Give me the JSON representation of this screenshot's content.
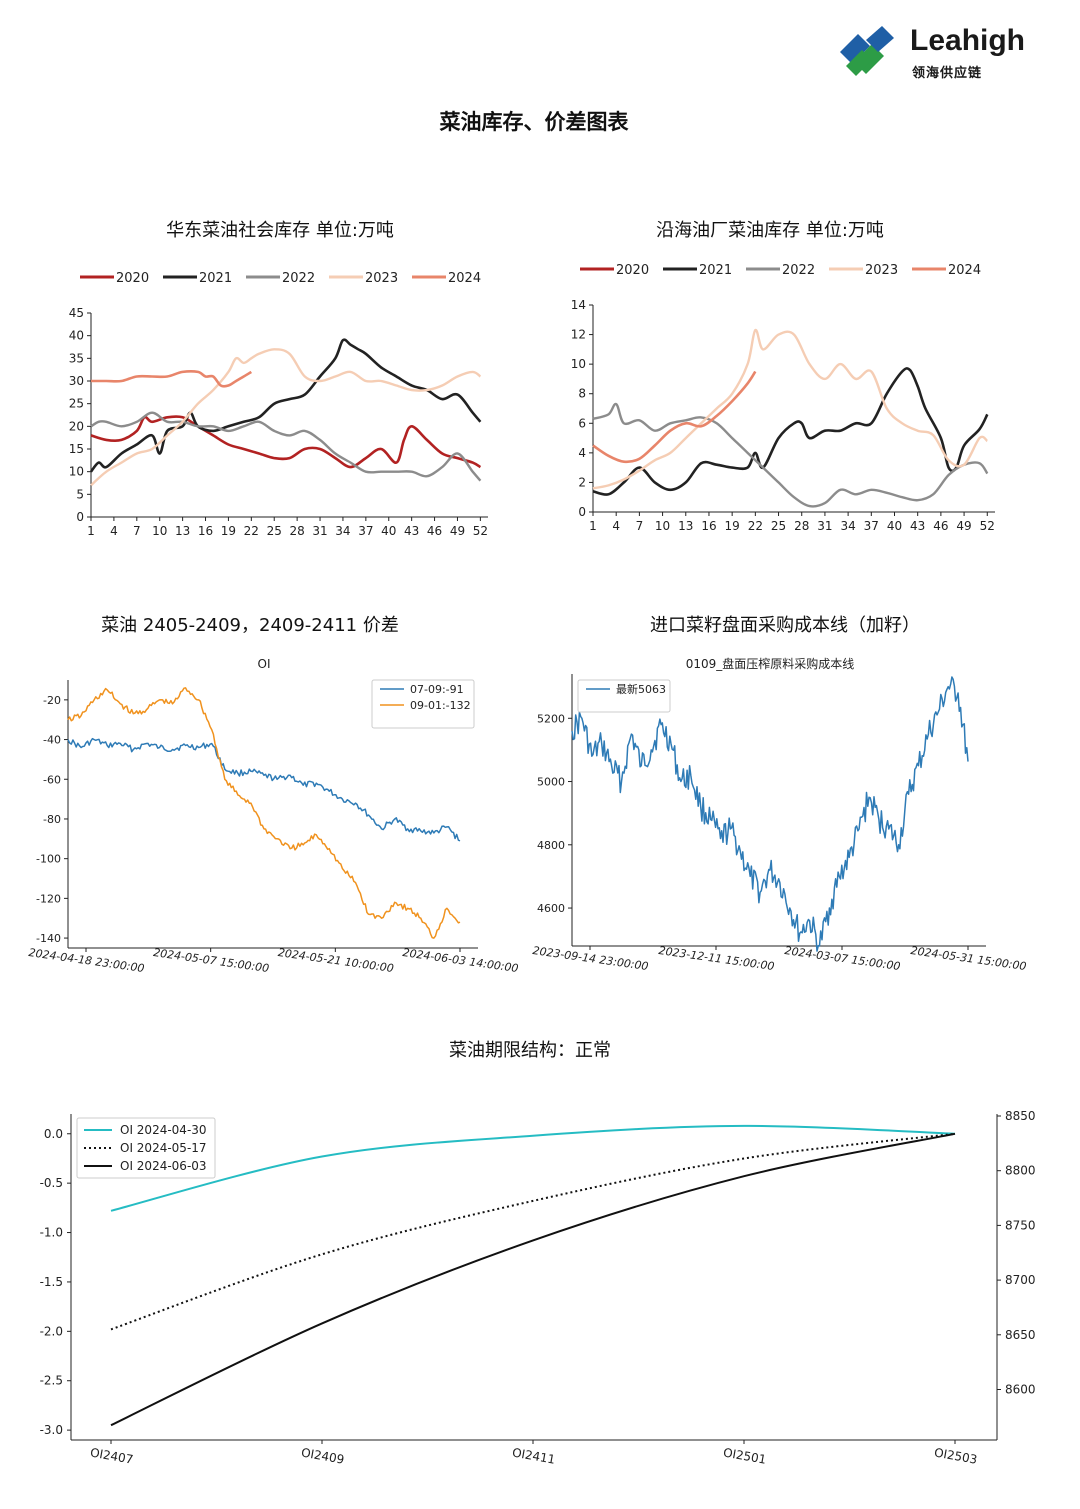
{
  "header": {
    "logo_name": "Leahigh",
    "logo_sub": "领海供应链",
    "page_title": "菜油库存、价差图表"
  },
  "colors": {
    "y2020": "#b22222",
    "y2021": "#222222",
    "y2022": "#8c8c8c",
    "y2023": "#f5cdb4",
    "y2024": "#e8856a",
    "blue": "#2e7bb6",
    "orange": "#f0921e",
    "teal": "#25bcc3"
  },
  "chart_data": [
    {
      "id": "east_china_inventory",
      "type": "line",
      "title": "华东菜油社会库存  单位:万吨",
      "legend_placement": "top",
      "xticks": [
        "1",
        "4",
        "7",
        "10",
        "13",
        "16",
        "19",
        "22",
        "25",
        "28",
        "31",
        "34",
        "37",
        "40",
        "43",
        "46",
        "49",
        "52"
      ],
      "yticks": [
        "0",
        "5",
        "10",
        "15",
        "20",
        "25",
        "30",
        "35",
        "40",
        "45"
      ],
      "ylim": [
        0,
        45
      ],
      "xlim": [
        1,
        53
      ],
      "series": [
        {
          "name": "2020",
          "color": "#b22222",
          "x": [
            1,
            3,
            5,
            7,
            8,
            9,
            11,
            13,
            15,
            17,
            19,
            21,
            23,
            25,
            27,
            29,
            31,
            33,
            35,
            37,
            39,
            41,
            42,
            43,
            45,
            47,
            49,
            51,
            52
          ],
          "y": [
            18,
            17,
            17,
            19,
            22,
            21,
            22,
            22,
            20,
            18,
            16,
            15,
            14,
            13,
            13,
            15,
            15,
            13,
            11,
            13,
            15,
            12,
            17,
            20,
            17,
            14,
            13,
            12,
            11
          ]
        },
        {
          "name": "2021",
          "color": "#222222",
          "x": [
            1,
            2,
            3,
            5,
            7,
            9,
            10,
            11,
            13,
            14,
            15,
            17,
            19,
            21,
            23,
            25,
            27,
            29,
            31,
            33,
            34,
            35,
            36,
            37,
            39,
            41,
            43,
            45,
            47,
            49,
            51,
            52
          ],
          "y": [
            10,
            12,
            11,
            14,
            16,
            18,
            14,
            19,
            20,
            23,
            20,
            19,
            20,
            21,
            22,
            25,
            26,
            27,
            31,
            35,
            39,
            38,
            37,
            36,
            33,
            31,
            29,
            28,
            26,
            27,
            23,
            21
          ]
        },
        {
          "name": "2022",
          "color": "#8c8c8c",
          "x": [
            1,
            2,
            3,
            5,
            7,
            9,
            11,
            13,
            15,
            17,
            19,
            21,
            23,
            25,
            27,
            29,
            31,
            33,
            35,
            37,
            39,
            41,
            43,
            45,
            47,
            49,
            51,
            52
          ],
          "y": [
            20,
            21,
            21,
            20,
            21,
            23,
            21,
            21,
            20,
            20,
            19,
            20,
            21,
            19,
            18,
            19,
            17,
            14,
            12,
            10,
            10,
            10,
            10,
            9,
            11,
            14,
            10,
            8
          ]
        },
        {
          "name": "2023",
          "color": "#f5cdb4",
          "x": [
            1,
            3,
            5,
            7,
            9,
            11,
            13,
            15,
            17,
            19,
            20,
            21,
            22,
            23,
            25,
            27,
            29,
            31,
            33,
            35,
            37,
            39,
            41,
            43,
            45,
            47,
            49,
            51,
            52
          ],
          "y": [
            7,
            10,
            12,
            14,
            15,
            18,
            21,
            25,
            28,
            32,
            35,
            34,
            35,
            36,
            37,
            36,
            31,
            30,
            31,
            32,
            30,
            30,
            29,
            28,
            28,
            29,
            31,
            32,
            31
          ]
        },
        {
          "name": "2024",
          "color": "#e8856a",
          "x": [
            1,
            3,
            5,
            7,
            9,
            11,
            13,
            15,
            16,
            17,
            18,
            19,
            20,
            21,
            22
          ],
          "y": [
            30,
            30,
            30,
            31,
            31,
            31,
            32,
            32,
            31,
            31,
            29,
            29,
            30,
            31,
            32
          ]
        }
      ]
    },
    {
      "id": "coastal_mill_inventory",
      "type": "line",
      "title": "沿海油厂菜油库存  单位:万吨",
      "legend_placement": "top",
      "xticks": [
        "1",
        "4",
        "7",
        "10",
        "13",
        "16",
        "19",
        "22",
        "25",
        "28",
        "31",
        "34",
        "37",
        "40",
        "43",
        "46",
        "49",
        "52"
      ],
      "yticks": [
        "0",
        "2",
        "4",
        "6",
        "8",
        "10",
        "12",
        "14"
      ],
      "ylim": [
        0,
        14
      ],
      "xlim": [
        1,
        53
      ],
      "series": [
        {
          "name": "2020",
          "color": "#b22222",
          "x": [],
          "y": []
        },
        {
          "name": "2021",
          "color": "#222222",
          "x": [
            1,
            3,
            5,
            7,
            9,
            11,
            13,
            15,
            17,
            19,
            21,
            22,
            23,
            25,
            27,
            28,
            29,
            31,
            33,
            35,
            37,
            39,
            41,
            42,
            43,
            44,
            46,
            47,
            48,
            49,
            51,
            52
          ],
          "y": [
            1.4,
            1.2,
            2,
            3,
            2,
            1.5,
            2,
            3.3,
            3.2,
            3,
            3,
            4,
            3,
            5,
            6,
            6,
            5,
            5.5,
            5.5,
            6,
            6,
            8,
            9.5,
            9.6,
            8.5,
            7,
            5,
            3,
            3,
            4.5,
            5.6,
            6.6
          ]
        },
        {
          "name": "2022",
          "color": "#8c8c8c",
          "x": [
            1,
            3,
            4,
            5,
            7,
            9,
            11,
            13,
            15,
            17,
            19,
            21,
            23,
            25,
            27,
            29,
            31,
            33,
            35,
            37,
            39,
            41,
            43,
            45,
            47,
            49,
            51,
            52
          ],
          "y": [
            6.3,
            6.6,
            7.3,
            6,
            6.2,
            5.5,
            6,
            6.2,
            6.4,
            6,
            5,
            4,
            3,
            2,
            1,
            0.4,
            0.6,
            1.5,
            1.2,
            1.5,
            1.3,
            1,
            0.8,
            1.2,
            2.5,
            3.2,
            3.3,
            2.6
          ]
        },
        {
          "name": "2023",
          "color": "#f5cdb4",
          "x": [
            1,
            3,
            5,
            7,
            9,
            11,
            13,
            15,
            17,
            19,
            21,
            22,
            23,
            25,
            27,
            29,
            31,
            33,
            35,
            37,
            39,
            41,
            43,
            45,
            47,
            49,
            51,
            52
          ],
          "y": [
            1.6,
            1.8,
            2.2,
            2.8,
            3.5,
            4,
            5,
            6,
            7,
            8,
            10,
            12.3,
            11,
            12,
            12,
            10,
            9,
            10,
            9,
            9.5,
            7,
            6,
            5.5,
            5.2,
            3.5,
            3.2,
            5,
            4.8
          ]
        },
        {
          "name": "2024",
          "color": "#e8856a",
          "x": [
            1,
            3,
            5,
            7,
            9,
            11,
            13,
            15,
            17,
            19,
            21,
            22
          ],
          "y": [
            4.5,
            3.8,
            3.4,
            3.6,
            4.5,
            5.5,
            6,
            5.8,
            6.5,
            7.5,
            8.7,
            9.5
          ]
        }
      ]
    },
    {
      "id": "spread_2405_2409_2411",
      "type": "line",
      "title": "菜油 2405-2409，2409-2411 价差",
      "subtitle": "OI",
      "legend_placement": "top-right",
      "xticks": [
        "2024-04-18 23:00:00",
        "2024-05-07 15:00:00",
        "2024-05-21 10:00:00",
        "2024-06-03 14:00:00"
      ],
      "yticks": [
        "-20",
        "-40",
        "-60",
        "-80",
        "-100",
        "-120",
        "-140"
      ],
      "ylim": [
        -145,
        -10
      ],
      "series": [
        {
          "name": "07-09:-91",
          "color": "#2e7bb6",
          "x": [
            0,
            1,
            2,
            3,
            4,
            5,
            6,
            7,
            8,
            9,
            10,
            11,
            12,
            13,
            14,
            15,
            16,
            17,
            18,
            19,
            20,
            21,
            22,
            23,
            24,
            25,
            26,
            27,
            28,
            29,
            30
          ],
          "y": [
            -40,
            -44,
            -40,
            -43,
            -42,
            -45,
            -42,
            -44,
            -45,
            -43,
            -44,
            -42,
            -55,
            -57,
            -56,
            -58,
            -60,
            -58,
            -63,
            -62,
            -66,
            -70,
            -72,
            -78,
            -85,
            -80,
            -85,
            -86,
            -87,
            -84,
            -91
          ]
        },
        {
          "name": "09-01:-132",
          "color": "#f0921e",
          "x": [
            0,
            1,
            2,
            3,
            4,
            5,
            6,
            7,
            8,
            9,
            10,
            11,
            12,
            13,
            14,
            15,
            16,
            17,
            18,
            19,
            20,
            21,
            22,
            23,
            24,
            25,
            26,
            27,
            28,
            29,
            30
          ],
          "y": [
            -30,
            -28,
            -20,
            -15,
            -22,
            -27,
            -25,
            -20,
            -22,
            -14,
            -20,
            -35,
            -60,
            -68,
            -72,
            -85,
            -90,
            -95,
            -93,
            -88,
            -95,
            -105,
            -112,
            -128,
            -130,
            -122,
            -125,
            -130,
            -140,
            -125,
            -132
          ]
        }
      ]
    },
    {
      "id": "rapeseed_import_cost",
      "type": "line",
      "title": "进口菜籽盘面采购成本线（加籽）",
      "subtitle": "0109_盘面压榨原料采购成本线",
      "legend_placement": "top-left",
      "xticks": [
        "2023-09-14 23:00:00",
        "2023-12-11 15:00:00",
        "2024-03-07 15:00:00",
        "2024-05-31 15:00:00"
      ],
      "yticks": [
        "4600",
        "4800",
        "5000",
        "5200"
      ],
      "ylim": [
        4480,
        5340
      ],
      "series": [
        {
          "name": "最新5063",
          "color": "#2e7bb6",
          "x": [
            0,
            1,
            2,
            3,
            4,
            5,
            6,
            7,
            8,
            9,
            10,
            11,
            12,
            13,
            14,
            15,
            16,
            17,
            18,
            19,
            20,
            21,
            22,
            23,
            24,
            25,
            26,
            27,
            28,
            29,
            30,
            31,
            32,
            33,
            34,
            35,
            36,
            37,
            38,
            39,
            40
          ],
          "y": [
            5160,
            5200,
            5080,
            5120,
            5050,
            5000,
            5150,
            5050,
            5100,
            5180,
            5120,
            5000,
            5020,
            4920,
            4880,
            4820,
            4850,
            4780,
            4700,
            4650,
            4720,
            4680,
            4600,
            4520,
            4560,
            4480,
            4600,
            4700,
            4760,
            4850,
            4950,
            4880,
            4850,
            4800,
            4960,
            5050,
            5150,
            5220,
            5300,
            5280,
            5063
          ]
        }
      ]
    },
    {
      "id": "term_structure",
      "type": "line",
      "title": "菜油期限结构：正常",
      "legend_placement": "top-left",
      "categories": [
        "OI2407",
        "OI2409",
        "OI2411",
        "OI2501",
        "OI2503"
      ],
      "yticks_left": [
        "0.0",
        "-0.5",
        "-1.0",
        "-1.5",
        "-2.0",
        "-2.5",
        "-3.0"
      ],
      "yticks_right": [
        "8850",
        "8800",
        "8750",
        "8700",
        "8650",
        "8600"
      ],
      "ylim": [
        -3.1,
        0.2
      ],
      "series": [
        {
          "name": "OI 2024-04-30",
          "color": "#25bcc3",
          "style": "solid",
          "values": [
            -0.78,
            -0.23,
            -0.02,
            0.08,
            0.0
          ]
        },
        {
          "name": "OI 2024-05-17",
          "color": "#111111",
          "style": "dotted",
          "values": [
            -1.98,
            -1.22,
            -0.68,
            -0.25,
            0.0
          ]
        },
        {
          "name": "OI 2024-06-03",
          "color": "#111111",
          "style": "solid",
          "values": [
            -2.95,
            -1.92,
            -1.08,
            -0.43,
            0.0
          ]
        }
      ]
    }
  ]
}
